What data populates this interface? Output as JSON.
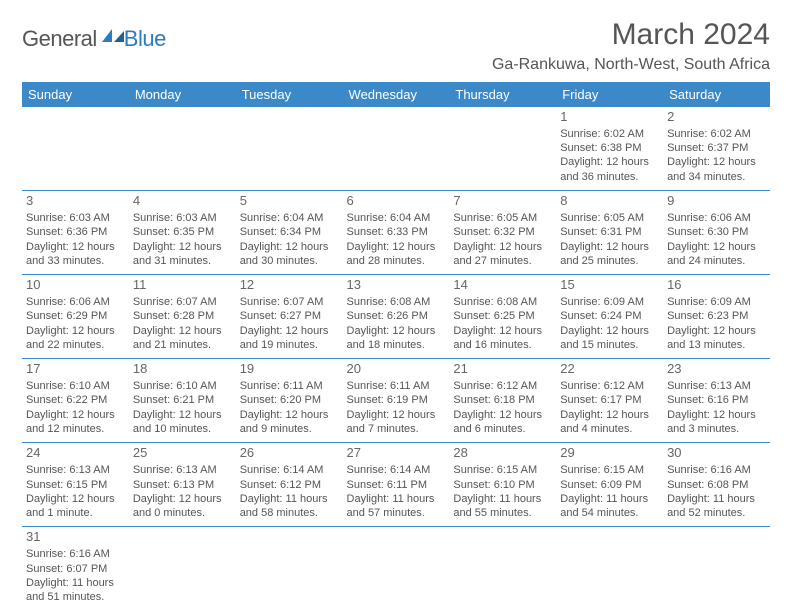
{
  "logo": {
    "text1": "General",
    "text2": "Blue"
  },
  "title": "March 2024",
  "location": "Ga-Rankuwa, North-West, South Africa",
  "colors": {
    "header_bg": "#3b89c9",
    "header_fg": "#ffffff",
    "rule": "#3b89c9",
    "text": "#555555",
    "logo_blue": "#2b7bbf"
  },
  "weekdays": [
    "Sunday",
    "Monday",
    "Tuesday",
    "Wednesday",
    "Thursday",
    "Friday",
    "Saturday"
  ],
  "weeks": [
    [
      null,
      null,
      null,
      null,
      null,
      {
        "d": "1",
        "sunrise": "Sunrise: 6:02 AM",
        "sunset": "Sunset: 6:38 PM",
        "day1": "Daylight: 12 hours",
        "day2": "and 36 minutes."
      },
      {
        "d": "2",
        "sunrise": "Sunrise: 6:02 AM",
        "sunset": "Sunset: 6:37 PM",
        "day1": "Daylight: 12 hours",
        "day2": "and 34 minutes."
      }
    ],
    [
      {
        "d": "3",
        "sunrise": "Sunrise: 6:03 AM",
        "sunset": "Sunset: 6:36 PM",
        "day1": "Daylight: 12 hours",
        "day2": "and 33 minutes."
      },
      {
        "d": "4",
        "sunrise": "Sunrise: 6:03 AM",
        "sunset": "Sunset: 6:35 PM",
        "day1": "Daylight: 12 hours",
        "day2": "and 31 minutes."
      },
      {
        "d": "5",
        "sunrise": "Sunrise: 6:04 AM",
        "sunset": "Sunset: 6:34 PM",
        "day1": "Daylight: 12 hours",
        "day2": "and 30 minutes."
      },
      {
        "d": "6",
        "sunrise": "Sunrise: 6:04 AM",
        "sunset": "Sunset: 6:33 PM",
        "day1": "Daylight: 12 hours",
        "day2": "and 28 minutes."
      },
      {
        "d": "7",
        "sunrise": "Sunrise: 6:05 AM",
        "sunset": "Sunset: 6:32 PM",
        "day1": "Daylight: 12 hours",
        "day2": "and 27 minutes."
      },
      {
        "d": "8",
        "sunrise": "Sunrise: 6:05 AM",
        "sunset": "Sunset: 6:31 PM",
        "day1": "Daylight: 12 hours",
        "day2": "and 25 minutes."
      },
      {
        "d": "9",
        "sunrise": "Sunrise: 6:06 AM",
        "sunset": "Sunset: 6:30 PM",
        "day1": "Daylight: 12 hours",
        "day2": "and 24 minutes."
      }
    ],
    [
      {
        "d": "10",
        "sunrise": "Sunrise: 6:06 AM",
        "sunset": "Sunset: 6:29 PM",
        "day1": "Daylight: 12 hours",
        "day2": "and 22 minutes."
      },
      {
        "d": "11",
        "sunrise": "Sunrise: 6:07 AM",
        "sunset": "Sunset: 6:28 PM",
        "day1": "Daylight: 12 hours",
        "day2": "and 21 minutes."
      },
      {
        "d": "12",
        "sunrise": "Sunrise: 6:07 AM",
        "sunset": "Sunset: 6:27 PM",
        "day1": "Daylight: 12 hours",
        "day2": "and 19 minutes."
      },
      {
        "d": "13",
        "sunrise": "Sunrise: 6:08 AM",
        "sunset": "Sunset: 6:26 PM",
        "day1": "Daylight: 12 hours",
        "day2": "and 18 minutes."
      },
      {
        "d": "14",
        "sunrise": "Sunrise: 6:08 AM",
        "sunset": "Sunset: 6:25 PM",
        "day1": "Daylight: 12 hours",
        "day2": "and 16 minutes."
      },
      {
        "d": "15",
        "sunrise": "Sunrise: 6:09 AM",
        "sunset": "Sunset: 6:24 PM",
        "day1": "Daylight: 12 hours",
        "day2": "and 15 minutes."
      },
      {
        "d": "16",
        "sunrise": "Sunrise: 6:09 AM",
        "sunset": "Sunset: 6:23 PM",
        "day1": "Daylight: 12 hours",
        "day2": "and 13 minutes."
      }
    ],
    [
      {
        "d": "17",
        "sunrise": "Sunrise: 6:10 AM",
        "sunset": "Sunset: 6:22 PM",
        "day1": "Daylight: 12 hours",
        "day2": "and 12 minutes."
      },
      {
        "d": "18",
        "sunrise": "Sunrise: 6:10 AM",
        "sunset": "Sunset: 6:21 PM",
        "day1": "Daylight: 12 hours",
        "day2": "and 10 minutes."
      },
      {
        "d": "19",
        "sunrise": "Sunrise: 6:11 AM",
        "sunset": "Sunset: 6:20 PM",
        "day1": "Daylight: 12 hours",
        "day2": "and 9 minutes."
      },
      {
        "d": "20",
        "sunrise": "Sunrise: 6:11 AM",
        "sunset": "Sunset: 6:19 PM",
        "day1": "Daylight: 12 hours",
        "day2": "and 7 minutes."
      },
      {
        "d": "21",
        "sunrise": "Sunrise: 6:12 AM",
        "sunset": "Sunset: 6:18 PM",
        "day1": "Daylight: 12 hours",
        "day2": "and 6 minutes."
      },
      {
        "d": "22",
        "sunrise": "Sunrise: 6:12 AM",
        "sunset": "Sunset: 6:17 PM",
        "day1": "Daylight: 12 hours",
        "day2": "and 4 minutes."
      },
      {
        "d": "23",
        "sunrise": "Sunrise: 6:13 AM",
        "sunset": "Sunset: 6:16 PM",
        "day1": "Daylight: 12 hours",
        "day2": "and 3 minutes."
      }
    ],
    [
      {
        "d": "24",
        "sunrise": "Sunrise: 6:13 AM",
        "sunset": "Sunset: 6:15 PM",
        "day1": "Daylight: 12 hours",
        "day2": "and 1 minute."
      },
      {
        "d": "25",
        "sunrise": "Sunrise: 6:13 AM",
        "sunset": "Sunset: 6:13 PM",
        "day1": "Daylight: 12 hours",
        "day2": "and 0 minutes."
      },
      {
        "d": "26",
        "sunrise": "Sunrise: 6:14 AM",
        "sunset": "Sunset: 6:12 PM",
        "day1": "Daylight: 11 hours",
        "day2": "and 58 minutes."
      },
      {
        "d": "27",
        "sunrise": "Sunrise: 6:14 AM",
        "sunset": "Sunset: 6:11 PM",
        "day1": "Daylight: 11 hours",
        "day2": "and 57 minutes."
      },
      {
        "d": "28",
        "sunrise": "Sunrise: 6:15 AM",
        "sunset": "Sunset: 6:10 PM",
        "day1": "Daylight: 11 hours",
        "day2": "and 55 minutes."
      },
      {
        "d": "29",
        "sunrise": "Sunrise: 6:15 AM",
        "sunset": "Sunset: 6:09 PM",
        "day1": "Daylight: 11 hours",
        "day2": "and 54 minutes."
      },
      {
        "d": "30",
        "sunrise": "Sunrise: 6:16 AM",
        "sunset": "Sunset: 6:08 PM",
        "day1": "Daylight: 11 hours",
        "day2": "and 52 minutes."
      }
    ],
    [
      {
        "d": "31",
        "sunrise": "Sunrise: 6:16 AM",
        "sunset": "Sunset: 6:07 PM",
        "day1": "Daylight: 11 hours",
        "day2": "and 51 minutes."
      },
      null,
      null,
      null,
      null,
      null,
      null
    ]
  ]
}
